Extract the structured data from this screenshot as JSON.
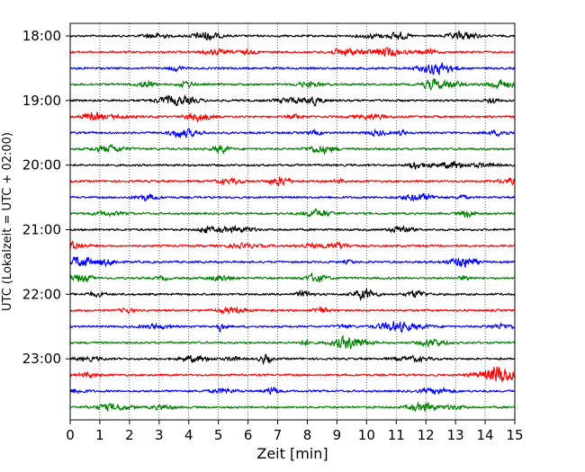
{
  "chart_data": {
    "type": "line",
    "title": "",
    "xlabel": "Zeit  [min]",
    "ylabel": "UTC (Lokalzeit = UTC + 02:00)",
    "xlim": [
      0,
      15
    ],
    "x_ticks": [
      "0",
      "1",
      "2",
      "3",
      "4",
      "5",
      "6",
      "7",
      "8",
      "9",
      "10",
      "11",
      "12",
      "13",
      "14",
      "15"
    ],
    "y_ticks": [
      "18:00",
      "19:00",
      "20:00",
      "21:00",
      "22:00",
      "23:00"
    ],
    "grid": "vertical dotted at each minute",
    "row_minutes": 15,
    "rows": 24,
    "start_time": "18:00",
    "colors": [
      "#000000",
      "#ff0000",
      "#0000ff",
      "#008000"
    ]
  }
}
